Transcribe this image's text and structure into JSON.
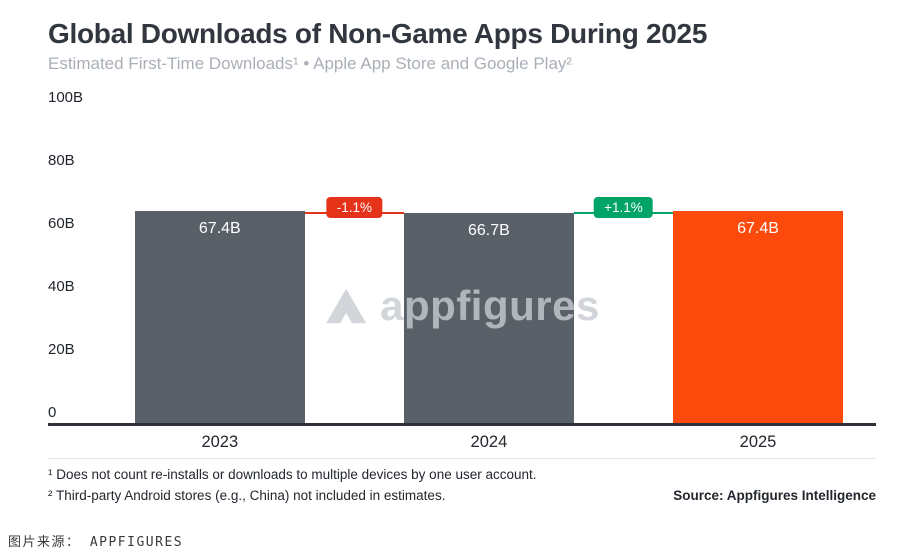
{
  "header": {
    "title": "Global Downloads of Non-Game Apps During 2025",
    "subtitle": "Estimated First-Time Downloads¹ • Apple App Store and Google Play²"
  },
  "chart_data": {
    "type": "bar",
    "title": "Global Downloads of Non-Game Apps During 2025",
    "categories": [
      "2023",
      "2024",
      "2025"
    ],
    "values": [
      67.4,
      66.7,
      67.4
    ],
    "value_labels": [
      "67.4B",
      "66.7B",
      "67.4B"
    ],
    "bar_colors": [
      "#5a6068",
      "#5a6068",
      "#fc4a0d"
    ],
    "xlabel": "",
    "ylabel": "",
    "ylim": [
      0,
      100
    ],
    "grid": false,
    "legend": false,
    "y_ticks": [
      "0",
      "20B",
      "40B",
      "60B",
      "80B",
      "100B"
    ],
    "y_tick_values": [
      0,
      20,
      40,
      60,
      80,
      100
    ],
    "deltas": [
      {
        "label": "-1.1%",
        "color": "#e5331a",
        "between": [
          "2023",
          "2024"
        ]
      },
      {
        "label": "+1.1%",
        "color": "#00a467",
        "between": [
          "2024",
          "2025"
        ]
      }
    ]
  },
  "watermark": {
    "text": "appfigures"
  },
  "footnotes": {
    "line1": "¹ Does not count re-installs or downloads to multiple devices by one user account.",
    "line2": "² Third-party Android stores (e.g., China) not included in estimates.",
    "source": "Source: Appfigures Intelligence"
  },
  "caption": {
    "text": "图片来源：  APPFIGURES"
  }
}
